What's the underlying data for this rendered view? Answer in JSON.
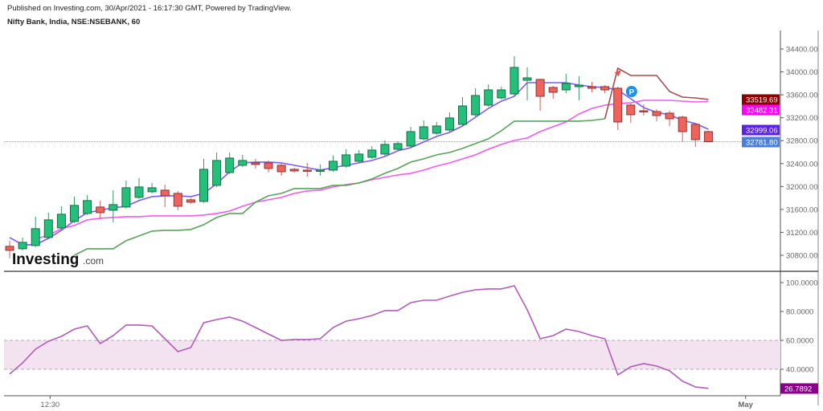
{
  "header": {
    "published": "Published on Investing.com, 30/Apr/2021 - 16:17:30 GMT, Powered by TradingView.",
    "symbol": "Nifty Bank, India, NSE:NSEBANK, 60"
  },
  "logo": {
    "text": "Investing",
    "suffix": ".com"
  },
  "chart_data": [
    {
      "type": "candlestick",
      "title": "Nifty Bank, India, NSE:NSEBANK, 60",
      "ylim": [
        30600,
        34800
      ],
      "y_ticks": [
        "34400.00",
        "34000.00",
        "33600.00",
        "33200.00",
        "32800.00",
        "32400.00",
        "32000.00",
        "31600.00",
        "31200.00",
        "30800.00"
      ],
      "x_ticks": [
        {
          "label": "12:30",
          "index": 3
        },
        {
          "label": "May",
          "index": 57
        }
      ],
      "grid": false,
      "ohlc": [
        [
          30956,
          31054,
          30746,
          30886
        ],
        [
          30914,
          31110,
          30886,
          31026
        ],
        [
          30970,
          31474,
          30942,
          31264
        ],
        [
          31110,
          31544,
          31082,
          31418
        ],
        [
          31278,
          31656,
          31250,
          31516
        ],
        [
          31390,
          31824,
          31362,
          31670
        ],
        [
          31530,
          31852,
          31502,
          31754
        ],
        [
          31642,
          31754,
          31432,
          31544
        ],
        [
          31586,
          31936,
          31376,
          31684
        ],
        [
          31642,
          32104,
          31614,
          31978
        ],
        [
          31810,
          32146,
          31782,
          31992
        ],
        [
          31908,
          32062,
          31880,
          31978
        ],
        [
          31936,
          32034,
          31642,
          31838
        ],
        [
          31880,
          31922,
          31586,
          31656
        ],
        [
          31768,
          31796,
          31698,
          31726
        ],
        [
          31740,
          32482,
          31712,
          32300
        ],
        [
          32020,
          32594,
          31992,
          32454
        ],
        [
          32244,
          32594,
          32216,
          32496
        ],
        [
          32370,
          32552,
          32342,
          32454
        ],
        [
          32412,
          32482,
          32314,
          32384
        ],
        [
          32412,
          32454,
          32244,
          32314
        ],
        [
          32370,
          32412,
          32188,
          32258
        ],
        [
          32300,
          32328,
          32244,
          32272
        ],
        [
          32286,
          32412,
          32174,
          32272
        ],
        [
          32272,
          32384,
          32188,
          32286
        ],
        [
          32286,
          32538,
          32258,
          32440
        ],
        [
          32356,
          32650,
          32328,
          32552
        ],
        [
          32440,
          32636,
          32412,
          32566
        ],
        [
          32510,
          32706,
          32482,
          32636
        ],
        [
          32566,
          32804,
          32538,
          32734
        ],
        [
          32650,
          32790,
          32622,
          32748
        ],
        [
          32706,
          33042,
          32678,
          32958
        ],
        [
          32832,
          33154,
          32804,
          33042
        ],
        [
          32930,
          33126,
          32902,
          33056
        ],
        [
          32986,
          33294,
          32958,
          33196
        ],
        [
          33084,
          33560,
          33056,
          33406
        ],
        [
          33252,
          33714,
          33224,
          33588
        ],
        [
          33420,
          33784,
          33392,
          33686
        ],
        [
          33546,
          33742,
          33518,
          33686
        ],
        [
          33616,
          34274,
          33588,
          34078
        ],
        [
          33854,
          34078,
          33504,
          33896
        ],
        [
          33868,
          33882,
          33322,
          33574
        ],
        [
          33728,
          33756,
          33532,
          33644
        ],
        [
          33686,
          33966,
          33630,
          33798
        ],
        [
          33742,
          33924,
          33504,
          33770
        ],
        [
          33742,
          33826,
          33644,
          33714
        ],
        [
          33742,
          33770,
          33630,
          33686
        ],
        [
          33714,
          33742,
          32986,
          33126
        ],
        [
          33420,
          33462,
          33112,
          33252
        ],
        [
          33322,
          33434,
          33238,
          33308
        ],
        [
          33308,
          33350,
          33140,
          33238
        ],
        [
          33280,
          33322,
          33056,
          33182
        ],
        [
          33210,
          33238,
          32776,
          32958
        ],
        [
          33084,
          33112,
          32692,
          32818
        ],
        [
          32958,
          32972,
          32776,
          32782
        ]
      ],
      "series": [
        {
          "color": "#7b5cf0",
          "last_label": "32999.06",
          "label_color": "#5a22e8",
          "values": [
            31110,
            30984,
            30984,
            31096,
            31236,
            31404,
            31544,
            31586,
            31628,
            31656,
            31754,
            31824,
            31838,
            31838,
            31824,
            31880,
            32048,
            32258,
            32412,
            32426,
            32426,
            32412,
            32370,
            32328,
            32286,
            32328,
            32370,
            32412,
            32454,
            32524,
            32622,
            32678,
            32776,
            32874,
            32944,
            33056,
            33210,
            33364,
            33490,
            33574,
            33812,
            33812,
            33812,
            33812,
            33770,
            33742,
            33728,
            33686,
            33532,
            33378,
            33294,
            33252,
            33154,
            33098,
            32999
          ]
        },
        {
          "color": "#f05cf0",
          "last_label": "33482.31",
          "label_color": "#ff00ff",
          "values": [
            null,
            null,
            31082,
            31152,
            31264,
            31320,
            31418,
            31446,
            31460,
            31474,
            31474,
            31488,
            31488,
            31488,
            31488,
            31502,
            31530,
            31572,
            31656,
            31726,
            31768,
            31810,
            31880,
            31922,
            31936,
            31992,
            32034,
            32062,
            32118,
            32160,
            32202,
            32230,
            32286,
            32356,
            32412,
            32482,
            32552,
            32650,
            32734,
            32804,
            32846,
            32958,
            33042,
            33126,
            33266,
            33364,
            33420,
            33448,
            33462,
            33504,
            33504,
            33504,
            33490,
            33476,
            33482
          ]
        },
        {
          "color": "#5aa25a",
          "values": [
            null,
            null,
            null,
            null,
            null,
            30802,
            30914,
            30914,
            30914,
            31054,
            31138,
            31222,
            31236,
            31236,
            31250,
            31334,
            31460,
            31530,
            31530,
            31726,
            31838,
            31880,
            31964,
            31964,
            31964,
            32020,
            32020,
            32062,
            32132,
            32230,
            32314,
            32426,
            32482,
            32552,
            32594,
            32664,
            32748,
            32832,
            32972,
            33140,
            33140,
            33140,
            33140,
            33140,
            33140,
            33154,
            33182,
            null,
            null,
            null,
            null,
            null,
            null,
            null,
            null
          ]
        },
        {
          "color": "#a05050",
          "last_label": "33519.69",
          "label_color": "#8b0000",
          "values": [
            null,
            null,
            null,
            null,
            null,
            null,
            null,
            null,
            null,
            null,
            null,
            null,
            null,
            null,
            null,
            null,
            null,
            null,
            null,
            null,
            null,
            null,
            null,
            null,
            null,
            null,
            null,
            null,
            null,
            null,
            null,
            null,
            null,
            null,
            null,
            null,
            null,
            null,
            null,
            null,
            null,
            null,
            null,
            null,
            null,
            null,
            33182,
            34064,
            33938,
            33938,
            33938,
            33658,
            33560,
            33546,
            33519
          ]
        }
      ],
      "last_price": {
        "value": 32781.8,
        "label": "32781.80",
        "color": "#4a7fdc"
      },
      "markers": [
        {
          "index": 47,
          "type": "red-arrow",
          "color": "#f05050"
        },
        {
          "index": 48,
          "type": "P-badge",
          "text": "P",
          "color": "#1e90e8"
        }
      ],
      "colors": {
        "up": "#22c07a",
        "down": "#f0625a"
      }
    },
    {
      "type": "line",
      "ylim": [
        20,
        105
      ],
      "y_ticks": [
        "100.0000",
        "80.0000",
        "60.0000",
        "40.0000"
      ],
      "band": [
        40,
        60
      ],
      "band_color": "#f3e3f1",
      "series": [
        {
          "color": "#b35bb8",
          "last_label": "26.7892",
          "label_color": "#8b008b",
          "values": [
            36.7,
            44.4,
            53.9,
            59.4,
            62.8,
            67.8,
            70.0,
            57.8,
            63.3,
            70.6,
            70.6,
            70.0,
            61.1,
            52.2,
            55.0,
            72.2,
            74.4,
            76.1,
            73.3,
            68.9,
            64.4,
            60.0,
            60.6,
            60.6,
            61.1,
            68.9,
            73.3,
            75.0,
            77.2,
            80.6,
            80.6,
            86.1,
            87.8,
            87.8,
            90.6,
            93.3,
            95.0,
            95.6,
            95.6,
            97.8,
            81.1,
            61.1,
            63.3,
            67.8,
            66.1,
            63.3,
            61.1,
            36.1,
            41.7,
            43.9,
            42.2,
            38.9,
            31.7,
            27.8,
            26.79
          ]
        }
      ]
    }
  ]
}
